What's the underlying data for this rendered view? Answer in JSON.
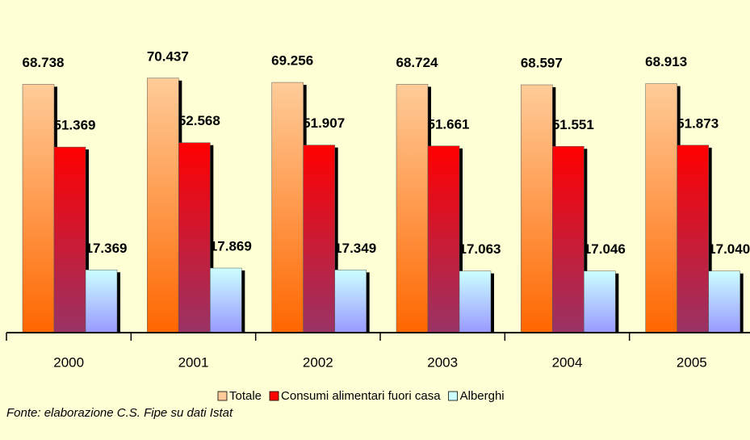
{
  "chart_data": {
    "type": "bar",
    "categories": [
      "2000",
      "2001",
      "2002",
      "2003",
      "2004",
      "2005"
    ],
    "series": [
      {
        "name": "Totale",
        "color": "#ffcc99",
        "values": [
          68738,
          70437,
          69256,
          68724,
          68597,
          68913
        ],
        "value_labels": [
          "68.738",
          "70.437",
          "69.256",
          "68.724",
          "68.597",
          "68.913"
        ]
      },
      {
        "name": "Consumi alimentari fuori casa",
        "color": "#ff0000",
        "values": [
          51369,
          52568,
          51907,
          51661,
          51551,
          51873
        ],
        "value_labels": [
          "51.369",
          "52.568",
          "51.907",
          "51.661",
          "51.551",
          "51.873"
        ]
      },
      {
        "name": "Alberghi",
        "color": "#ccffff",
        "values": [
          17369,
          17869,
          17349,
          17063,
          17046,
          17040
        ],
        "value_labels": [
          "17.369",
          "17.869",
          "17.349",
          "17.063",
          "17.046",
          "17.040"
        ]
      }
    ],
    "ylim": [
      0,
      80000
    ],
    "source": "Fonte: elaborazione C.S. Fipe su dati Istat",
    "legend": "bottom"
  }
}
